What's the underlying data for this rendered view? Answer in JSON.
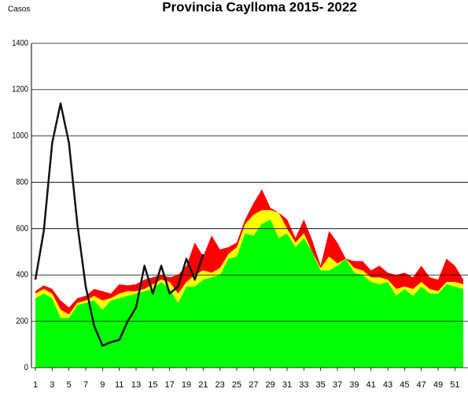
{
  "chart_data": {
    "type": "stacked_area_line",
    "title": "Provincia Caylloma 2015- 2022",
    "y_label": "Casos",
    "x": [
      1,
      2,
      3,
      4,
      5,
      6,
      7,
      8,
      9,
      10,
      11,
      12,
      13,
      14,
      15,
      16,
      17,
      18,
      19,
      20,
      21,
      22,
      23,
      24,
      25,
      26,
      27,
      28,
      29,
      30,
      31,
      32,
      33,
      34,
      35,
      36,
      37,
      38,
      39,
      40,
      41,
      42,
      43,
      44,
      45,
      46,
      47,
      48,
      49,
      50,
      51,
      52
    ],
    "xlim": [
      1,
      52
    ],
    "xticks": [
      1,
      3,
      5,
      7,
      9,
      11,
      13,
      15,
      17,
      19,
      21,
      23,
      25,
      27,
      29,
      31,
      33,
      35,
      37,
      39,
      41,
      43,
      45,
      47,
      49,
      51
    ],
    "ylim": [
      0,
      1400
    ],
    "yticks": [
      0,
      200,
      400,
      600,
      800,
      1000,
      1200,
      1400
    ],
    "grid": true,
    "series": [
      {
        "color": "#00ff00",
        "kind": "area",
        "values": [
          300,
          320,
          300,
          215,
          215,
          270,
          280,
          290,
          250,
          290,
          300,
          310,
          320,
          330,
          340,
          370,
          340,
          280,
          350,
          350,
          380,
          390,
          400,
          470,
          480,
          580,
          570,
          620,
          640,
          560,
          580,
          520,
          560,
          500,
          420,
          420,
          440,
          470,
          410,
          400,
          370,
          360,
          370,
          310,
          340,
          310,
          350,
          320,
          320,
          360,
          350,
          340
        ]
      },
      {
        "color": "#ffff00",
        "kind": "area",
        "values": [
          20,
          20,
          20,
          35,
          15,
          10,
          10,
          20,
          40,
          10,
          20,
          20,
          10,
          10,
          20,
          10,
          30,
          40,
          20,
          50,
          40,
          20,
          30,
          20,
          40,
          40,
          90,
          60,
          40,
          110,
          20,
          20,
          20,
          0,
          10,
          60,
          10,
          0,
          20,
          20,
          20,
          30,
          10,
          30,
          10,
          30,
          20,
          20,
          10,
          10,
          20,
          20
        ]
      },
      {
        "color": "#ff0000",
        "kind": "area",
        "values": [
          10,
          15,
          20,
          40,
          30,
          20,
          20,
          30,
          40,
          20,
          40,
          25,
          30,
          40,
          30,
          20,
          20,
          80,
          70,
          140,
          60,
          160,
          80,
          30,
          20,
          20,
          50,
          90,
          10,
          0,
          40,
          20,
          60,
          50,
          10,
          110,
          90,
          0,
          30,
          40,
          30,
          50,
          30,
          60,
          60,
          50,
          70,
          50,
          50,
          100,
          70,
          20
        ]
      },
      {
        "color": "#111111",
        "kind": "line",
        "values": [
          380,
          590,
          970,
          1140,
          970,
          620,
          350,
          180,
          95,
          110,
          120,
          200,
          260,
          440,
          320,
          440,
          320,
          350,
          470,
          380,
          490,
          null,
          null,
          null,
          null,
          null,
          null,
          null,
          null,
          null,
          null,
          null,
          null,
          null,
          null,
          null,
          null,
          null,
          null,
          null,
          null,
          null,
          null,
          null,
          null,
          null,
          null,
          null,
          null,
          null,
          null,
          null
        ]
      }
    ]
  }
}
